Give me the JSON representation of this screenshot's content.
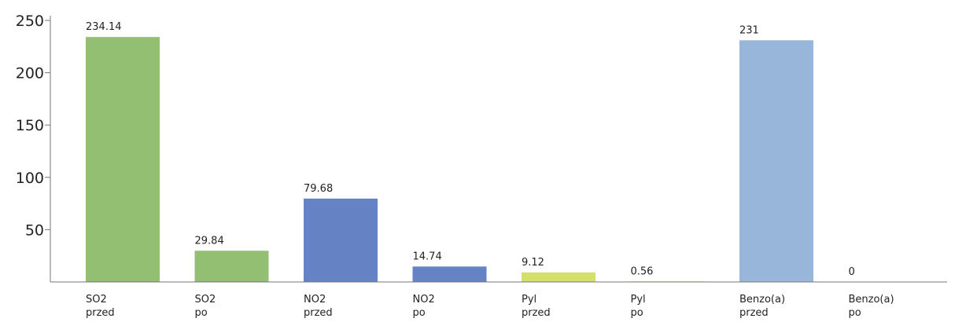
{
  "chart_data": {
    "type": "bar",
    "title": "",
    "xlabel": "",
    "ylabel": "",
    "ylim": [
      0,
      250
    ],
    "y_ticks": [
      50,
      100,
      150,
      200,
      250
    ],
    "grid": false,
    "categories": [
      [
        "SO2",
        "przed"
      ],
      [
        "SO2",
        "po"
      ],
      [
        "NO2",
        "przed"
      ],
      [
        "NO2",
        "po"
      ],
      [
        "Pyl",
        "przed"
      ],
      [
        "Pyl",
        "po"
      ],
      [
        "Benzo(a)",
        "przed"
      ],
      [
        "Benzo(a)",
        "po"
      ]
    ],
    "values": [
      234.14,
      29.84,
      79.68,
      14.74,
      9.12,
      0.56,
      231,
      0
    ],
    "value_labels": [
      "234.14",
      "29.84",
      "79.68",
      "14.74",
      "9.12",
      "0.56",
      "231",
      "0"
    ],
    "colors": [
      "#93bf73",
      "#93bf73",
      "#6583c4",
      "#6583c4",
      "#d5df6e",
      "#d5df6e",
      "#98b6d9",
      "#98b6d9"
    ]
  }
}
